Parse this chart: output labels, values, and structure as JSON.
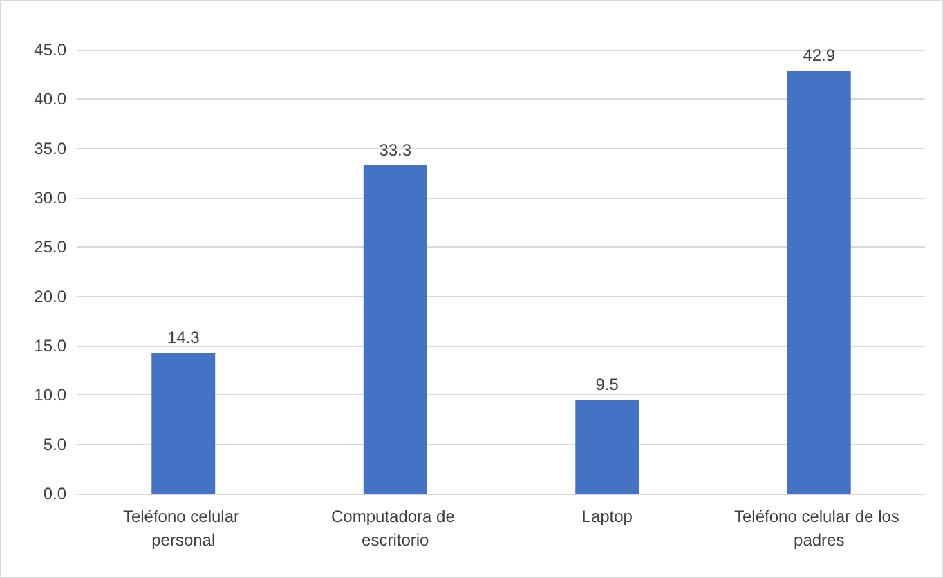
{
  "chart_data": {
    "type": "bar",
    "categories": [
      "Teléfono celular personal",
      "Computadora de escritorio",
      "Laptop",
      "Teléfono celular de los padres"
    ],
    "values": [
      14.3,
      33.3,
      9.5,
      42.9
    ],
    "color": "#4472c4",
    "ylim": [
      0,
      45
    ],
    "yticks": [
      {
        "value": 0,
        "label": "0.0"
      },
      {
        "value": 5,
        "label": "5.0"
      },
      {
        "value": 10,
        "label": "10.0"
      },
      {
        "value": 15,
        "label": "15.0"
      },
      {
        "value": 20,
        "label": "20.0"
      },
      {
        "value": 25,
        "label": "25.0"
      },
      {
        "value": 30,
        "label": "30.0"
      },
      {
        "value": 35,
        "label": "35.0"
      },
      {
        "value": 40,
        "label": "40.0"
      },
      {
        "value": 45,
        "label": "45.0"
      }
    ],
    "grid": true,
    "data_labels": true
  }
}
